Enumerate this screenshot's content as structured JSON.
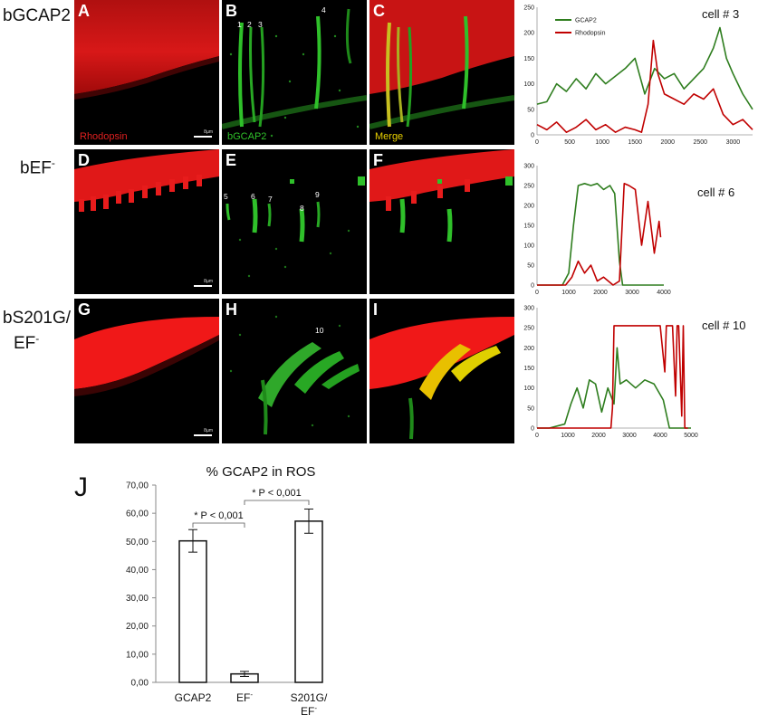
{
  "rows": [
    {
      "label": "bGCAP2",
      "label_parts": [
        "bGCAP2",
        "",
        ""
      ]
    },
    {
      "label": "bEF-",
      "label_parts": [
        "bEF",
        "-",
        ""
      ]
    },
    {
      "label": "bS201G/EF-",
      "label_parts": [
        "bS201G/",
        "EF",
        "-"
      ]
    }
  ],
  "panels": {
    "A": {
      "letter": "A",
      "caption": "Rhodopsin",
      "scale": "8µm"
    },
    "B": {
      "letter": "B",
      "caption": "bGCAP2",
      "cells": [
        "1",
        "2",
        "3",
        "4"
      ]
    },
    "C": {
      "letter": "C",
      "caption": "Merge"
    },
    "D": {
      "letter": "D",
      "scale": "8µm"
    },
    "E": {
      "letter": "E",
      "cells": [
        "5",
        "6",
        "7",
        "8",
        "9"
      ]
    },
    "F": {
      "letter": "F"
    },
    "G": {
      "letter": "G",
      "scale": "8µm"
    },
    "H": {
      "letter": "H",
      "cells": [
        "10"
      ]
    },
    "I": {
      "letter": "I"
    }
  },
  "colors": {
    "rhodopsin": "#c00000",
    "gcap2": "#2e7d1e",
    "panel_red": "#e01010",
    "panel_green": "#2fc02a",
    "merge_yellow": "#e8d000"
  },
  "chart_data": [
    {
      "type": "line",
      "title": "cell # 3",
      "legend": [
        "GCAP2",
        "Rhodopsin"
      ],
      "legend_position": "top-left",
      "xlim": [
        0,
        3300
      ],
      "xticks": [
        0,
        500,
        1000,
        1500,
        2000,
        2500,
        3000
      ],
      "ylim": [
        0,
        250
      ],
      "yticks": [
        0,
        50,
        100,
        150,
        200,
        250
      ],
      "series": [
        {
          "name": "GCAP2",
          "color": "#2e7d1e",
          "x": [
            0,
            150,
            300,
            450,
            600,
            750,
            900,
            1050,
            1200,
            1350,
            1500,
            1650,
            1800,
            1950,
            2100,
            2250,
            2400,
            2550,
            2700,
            2800,
            2900,
            3000,
            3150,
            3300
          ],
          "y": [
            60,
            65,
            100,
            85,
            110,
            90,
            120,
            100,
            115,
            130,
            150,
            80,
            130,
            110,
            120,
            90,
            110,
            130,
            170,
            210,
            150,
            120,
            80,
            50
          ]
        },
        {
          "name": "Rhodopsin",
          "color": "#c00000",
          "x": [
            0,
            150,
            300,
            450,
            600,
            750,
            900,
            1050,
            1200,
            1350,
            1500,
            1600,
            1700,
            1780,
            1850,
            1950,
            2100,
            2250,
            2400,
            2550,
            2700,
            2850,
            3000,
            3150,
            3300
          ],
          "y": [
            20,
            10,
            25,
            5,
            15,
            30,
            10,
            20,
            5,
            15,
            10,
            5,
            60,
            185,
            120,
            80,
            70,
            60,
            80,
            70,
            90,
            40,
            20,
            30,
            10
          ]
        }
      ]
    },
    {
      "type": "line",
      "title": "cell # 6",
      "xlim": [
        0,
        4000
      ],
      "xticks": [
        0,
        1000,
        2000,
        3000,
        4000
      ],
      "ylim": [
        0,
        300
      ],
      "yticks": [
        0,
        50,
        100,
        150,
        200,
        250,
        300
      ],
      "series": [
        {
          "color": "#2e7d1e",
          "x": [
            0,
            800,
            1000,
            1150,
            1300,
            1500,
            1700,
            1900,
            2100,
            2300,
            2450,
            2600,
            2700,
            3000,
            4000
          ],
          "y": [
            0,
            0,
            30,
            150,
            250,
            255,
            250,
            255,
            240,
            250,
            230,
            60,
            0,
            0,
            0
          ]
        },
        {
          "color": "#c00000",
          "x": [
            0,
            900,
            1100,
            1300,
            1500,
            1700,
            1900,
            2100,
            2400,
            2600,
            2750,
            2900,
            3100,
            3300,
            3500,
            3700,
            3850,
            3900
          ],
          "y": [
            0,
            0,
            20,
            60,
            30,
            50,
            10,
            20,
            0,
            10,
            255,
            250,
            240,
            100,
            210,
            80,
            160,
            120
          ]
        }
      ]
    },
    {
      "type": "line",
      "title": "cell # 10",
      "xlim": [
        0,
        5000
      ],
      "xticks": [
        0,
        1000,
        2000,
        3000,
        4000,
        5000
      ],
      "ylim": [
        0,
        300
      ],
      "yticks": [
        0,
        50,
        100,
        150,
        200,
        250,
        300
      ],
      "series": [
        {
          "color": "#2e7d1e",
          "x": [
            0,
            400,
            900,
            1100,
            1300,
            1500,
            1700,
            1900,
            2100,
            2300,
            2500,
            2600,
            2700,
            2900,
            3200,
            3500,
            3800,
            4100,
            4300,
            5000
          ],
          "y": [
            0,
            0,
            10,
            60,
            100,
            50,
            120,
            110,
            40,
            100,
            60,
            200,
            110,
            120,
            100,
            120,
            110,
            70,
            0,
            0
          ]
        },
        {
          "color": "#c00000",
          "x": [
            0,
            2400,
            2450,
            2500,
            3000,
            3500,
            4000,
            4150,
            4200,
            4250,
            4400,
            4500,
            4550,
            4600,
            4700,
            4750,
            4800,
            4900
          ],
          "y": [
            0,
            0,
            50,
            255,
            255,
            255,
            255,
            140,
            255,
            255,
            255,
            80,
            255,
            255,
            30,
            255,
            0,
            0
          ]
        }
      ]
    },
    {
      "type": "bar",
      "title": "% GCAP2 in ROS",
      "categories": [
        "GCAP2",
        "EF-",
        "S201G/EF-"
      ],
      "category_parts": [
        [
          "GCAP2",
          "",
          ""
        ],
        [
          "EF",
          "-",
          ""
        ],
        [
          "S201G/",
          "EF",
          "-"
        ]
      ],
      "values": [
        50.2,
        3.0,
        57.2
      ],
      "errors": [
        4.0,
        0.9,
        4.3
      ],
      "ylim": [
        0,
        70
      ],
      "yticks": [
        "0,00",
        "10,00",
        "20,00",
        "30,00",
        "40,00",
        "50,00",
        "60,00",
        "70,00"
      ],
      "annotations": [
        "* P < 0,001",
        "* P < 0,001"
      ]
    }
  ],
  "j_label": "J"
}
